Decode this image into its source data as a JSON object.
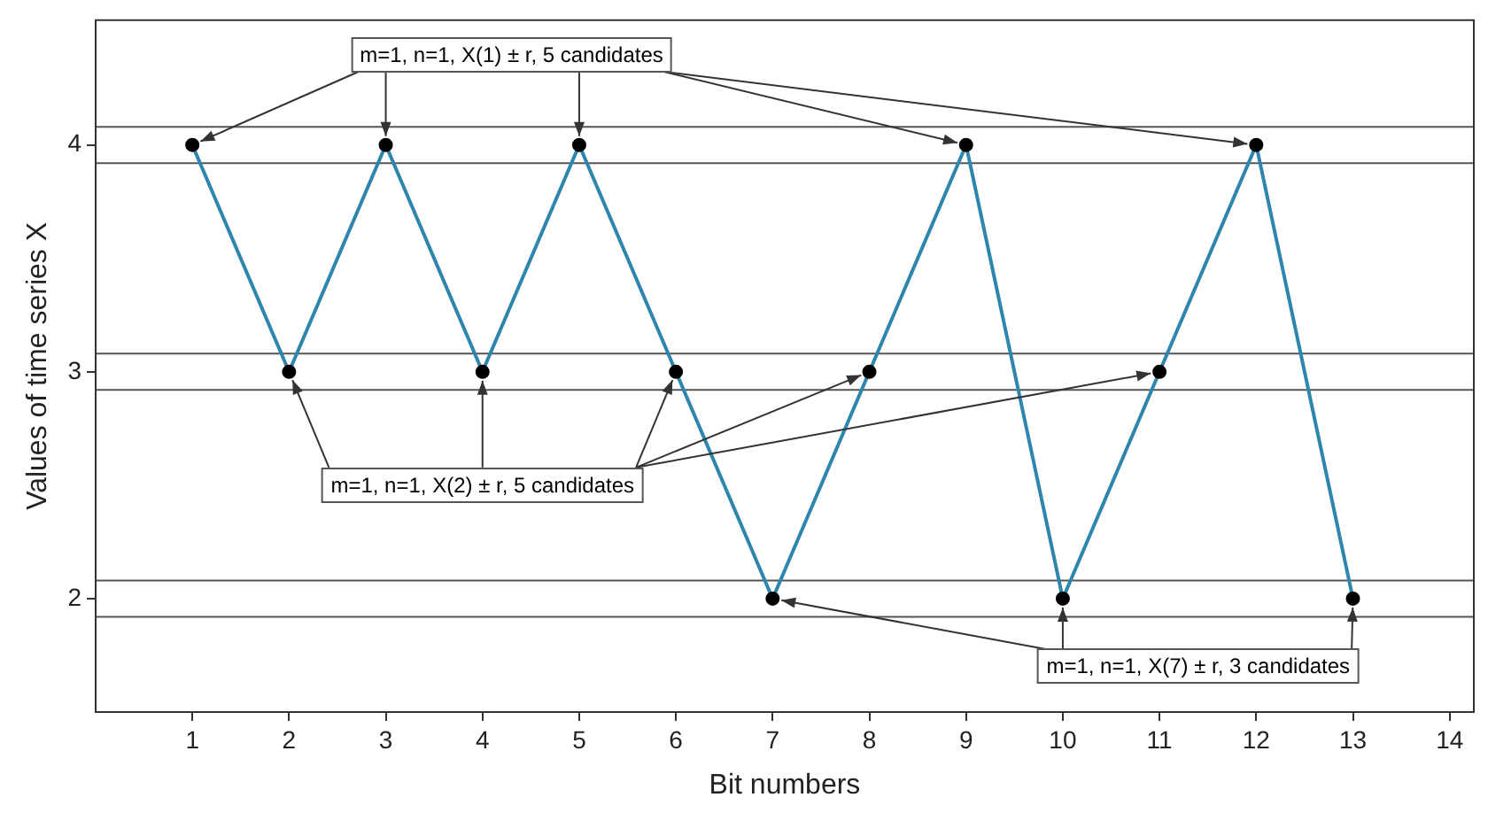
{
  "chart_data": {
    "type": "line",
    "xlabel": "Bit numbers",
    "ylabel": "Values of time series X",
    "x": [
      1,
      2,
      3,
      4,
      5,
      6,
      7,
      8,
      9,
      10,
      11,
      12,
      13
    ],
    "series": [
      {
        "color": "#2f86ad",
        "values": [
          4,
          3,
          4,
          3,
          4,
          3,
          2,
          3,
          4,
          2,
          3,
          4,
          2
        ]
      }
    ],
    "xlim": [
      0,
      14.25
    ],
    "xticks": [
      1,
      2,
      3,
      4,
      5,
      6,
      7,
      8,
      9,
      10,
      11,
      12,
      13,
      14
    ],
    "ylim": [
      1.5,
      4.55
    ],
    "yticks": [
      2,
      3,
      4
    ],
    "marker": "circle",
    "line_style": "solid",
    "grid": false,
    "legend": false,
    "ref_lines": [
      {
        "axis": "y",
        "value": 4.08,
        "color": "#555555"
      },
      {
        "axis": "y",
        "value": 3.92,
        "color": "#555555"
      },
      {
        "axis": "y",
        "value": 3.08,
        "color": "#555555"
      },
      {
        "axis": "y",
        "value": 2.92,
        "color": "#555555"
      },
      {
        "axis": "y",
        "value": 2.08,
        "color": "#555555"
      },
      {
        "axis": "y",
        "value": 1.92,
        "color": "#555555"
      }
    ],
    "annotations": [
      {
        "text": "m=1, n=1, X(1) ± r, 5 candidates",
        "x": 1,
        "y": 4
      },
      {
        "text": "m=1, n=1, X(2) ± r, 5 candidates",
        "x": 2,
        "y": 3
      },
      {
        "text": "m=1, n=1, X(7) ± r, 3 candidates",
        "x": 7,
        "y": 2
      }
    ]
  }
}
